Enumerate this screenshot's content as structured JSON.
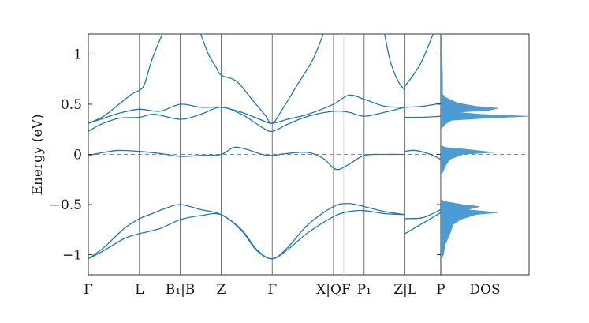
{
  "chart_data": {
    "type": "line",
    "title": "",
    "ylabel": "Energy (eV)",
    "xlabel": "",
    "ylim": [
      -1.2,
      1.2
    ],
    "yticks": [
      {
        "value": 1,
        "label": "1"
      },
      {
        "value": 0.5,
        "label": "0.5"
      },
      {
        "value": 0,
        "label": "0"
      },
      {
        "value": -0.5,
        "label": "−0.5"
      },
      {
        "value": -1,
        "label": "−1"
      }
    ],
    "kpath": [
      {
        "label": "Γ",
        "x": 0
      },
      {
        "label": "L",
        "x": 1
      },
      {
        "label": "B₁|B",
        "x": 1.8
      },
      {
        "label": "Z",
        "x": 2.6
      },
      {
        "label": "Γ",
        "x": 3.6
      },
      {
        "label": "X|QF",
        "x": 4.8
      },
      {
        "label": "P₁",
        "x": 5.4
      },
      {
        "label": "Z|L",
        "x": 6.2
      },
      {
        "label": "P",
        "x": 6.9
      }
    ],
    "xlim": [
      0,
      6.9
    ],
    "fermi_level": 0,
    "colors": {
      "band": "#1f78b4",
      "dos": "#4b9cd3",
      "fermi": "#8a8a8a",
      "axis": "#333333"
    },
    "segments": [
      {
        "x_range": [
          0,
          6.2
        ],
        "bands": [
          {
            "name": "",
            "points": [
              [
                0,
                -1.04
              ],
              [
                0.3,
                -0.93
              ],
              [
                0.7,
                -0.74
              ],
              [
                1.0,
                -0.64
              ],
              [
                1.2,
                -0.6
              ],
              [
                1.5,
                -0.54
              ],
              [
                1.8,
                -0.5
              ],
              [
                2.2,
                -0.55
              ],
              [
                2.6,
                -0.6
              ],
              [
                3.0,
                -0.75
              ],
              [
                3.3,
                -0.95
              ],
              [
                3.6,
                -1.04
              ],
              [
                3.9,
                -0.93
              ],
              [
                4.3,
                -0.7
              ],
              [
                4.8,
                -0.52
              ],
              [
                5.1,
                -0.49
              ],
              [
                5.4,
                -0.52
              ],
              [
                5.8,
                -0.57
              ],
              [
                6.2,
                -0.6
              ]
            ]
          },
          {
            "name": "",
            "points": [
              [
                0,
                -1.04
              ],
              [
                0.3,
                -0.96
              ],
              [
                0.7,
                -0.84
              ],
              [
                1.0,
                -0.79
              ],
              [
                1.4,
                -0.74
              ],
              [
                1.8,
                -0.65
              ],
              [
                2.2,
                -0.61
              ],
              [
                2.6,
                -0.6
              ],
              [
                3.0,
                -0.76
              ],
              [
                3.3,
                -0.96
              ],
              [
                3.6,
                -1.04
              ],
              [
                3.9,
                -0.95
              ],
              [
                4.3,
                -0.78
              ],
              [
                4.8,
                -0.62
              ],
              [
                5.1,
                -0.57
              ],
              [
                5.4,
                -0.56
              ],
              [
                5.8,
                -0.59
              ],
              [
                6.2,
                -0.6
              ]
            ]
          },
          {
            "name": "",
            "points": [
              [
                0,
                -0.01
              ],
              [
                0.3,
                0.02
              ],
              [
                0.6,
                0.04
              ],
              [
                1.0,
                0.03
              ],
              [
                1.4,
                0.01
              ],
              [
                1.8,
                -0.02
              ],
              [
                2.2,
                -0.01
              ],
              [
                2.6,
                0.0
              ],
              [
                2.85,
                0.07
              ],
              [
                3.1,
                0.05
              ],
              [
                3.4,
                0.0
              ],
              [
                3.6,
                -0.01
              ],
              [
                3.9,
                0.01
              ],
              [
                4.3,
                0.02
              ],
              [
                4.6,
                -0.04
              ],
              [
                4.85,
                -0.15
              ],
              [
                5.1,
                -0.1
              ],
              [
                5.4,
                -0.01
              ],
              [
                5.8,
                0.0
              ],
              [
                6.2,
                0.0
              ]
            ]
          },
          {
            "name": "",
            "points": [
              [
                0,
                0.23
              ],
              [
                0.25,
                0.3
              ],
              [
                0.6,
                0.36
              ],
              [
                1.0,
                0.37
              ],
              [
                1.3,
                0.4
              ],
              [
                1.8,
                0.35
              ],
              [
                2.2,
                0.4
              ],
              [
                2.6,
                0.47
              ],
              [
                3.0,
                0.4
              ],
              [
                3.4,
                0.27
              ],
              [
                3.6,
                0.23
              ],
              [
                3.9,
                0.3
              ],
              [
                4.3,
                0.38
              ],
              [
                4.8,
                0.43
              ],
              [
                5.1,
                0.42
              ],
              [
                5.4,
                0.38
              ],
              [
                5.8,
                0.42
              ],
              [
                6.2,
                0.47
              ]
            ]
          },
          {
            "name": "",
            "points": [
              [
                0,
                0.31
              ],
              [
                0.3,
                0.36
              ],
              [
                0.6,
                0.41
              ],
              [
                1.0,
                0.45
              ],
              [
                1.4,
                0.43
              ],
              [
                1.8,
                0.5
              ],
              [
                2.2,
                0.47
              ],
              [
                2.6,
                0.47
              ],
              [
                3.0,
                0.42
              ],
              [
                3.4,
                0.34
              ],
              [
                3.6,
                0.31
              ],
              [
                3.9,
                0.35
              ],
              [
                4.3,
                0.4
              ],
              [
                4.8,
                0.5
              ],
              [
                5.1,
                0.59
              ],
              [
                5.4,
                0.55
              ],
              [
                5.8,
                0.48
              ],
              [
                6.2,
                0.47
              ]
            ]
          },
          {
            "name": "",
            "points": [
              [
                0,
                0.31
              ],
              [
                0.3,
                0.38
              ],
              [
                0.6,
                0.5
              ],
              [
                0.85,
                0.6
              ],
              [
                1.0,
                0.64
              ],
              [
                1.1,
                0.7
              ],
              [
                1.25,
                0.95
              ],
              [
                1.45,
                1.2
              ]
            ]
          },
          {
            "name": "",
            "points": [
              [
                2.2,
                1.2
              ],
              [
                2.35,
                1.0
              ],
              [
                2.5,
                0.87
              ],
              [
                2.6,
                0.79
              ],
              [
                2.9,
                0.73
              ],
              [
                3.2,
                0.55
              ],
              [
                3.45,
                0.4
              ],
              [
                3.6,
                0.31
              ],
              [
                3.8,
                0.45
              ],
              [
                4.1,
                0.7
              ],
              [
                4.4,
                0.95
              ],
              [
                4.6,
                1.2
              ]
            ]
          },
          {
            "name": "",
            "points": [
              [
                5.8,
                1.2
              ],
              [
                5.9,
                0.95
              ],
              [
                6.0,
                0.8
              ],
              [
                6.1,
                0.7
              ],
              [
                6.2,
                0.64
              ]
            ]
          }
        ]
      },
      {
        "x_range": [
          6.2,
          6.9
        ],
        "bands": [
          {
            "name": "",
            "points": [
              [
                6.2,
                -0.79
              ],
              [
                6.5,
                -0.7
              ],
              [
                6.9,
                -0.58
              ]
            ]
          },
          {
            "name": "",
            "points": [
              [
                6.2,
                -0.64
              ],
              [
                6.55,
                -0.63
              ],
              [
                6.9,
                -0.55
              ]
            ]
          },
          {
            "name": "",
            "points": [
              [
                6.2,
                0.03
              ],
              [
                6.4,
                0.04
              ],
              [
                6.7,
                0.0
              ],
              [
                6.9,
                -0.05
              ]
            ]
          },
          {
            "name": "",
            "points": [
              [
                6.2,
                0.37
              ],
              [
                6.55,
                0.37
              ],
              [
                6.9,
                0.38
              ]
            ]
          },
          {
            "name": "",
            "points": [
              [
                6.2,
                0.47
              ],
              [
                6.55,
                0.48
              ],
              [
                6.9,
                0.51
              ]
            ]
          },
          {
            "name": "",
            "points": [
              [
                6.2,
                0.68
              ],
              [
                6.5,
                0.9
              ],
              [
                6.75,
                1.2
              ]
            ]
          }
        ]
      }
    ],
    "dos": {
      "label": "DOS",
      "profile": [
        [
          -1.05,
          0.0
        ],
        [
          -1.0,
          0.03
        ],
        [
          -0.9,
          0.05
        ],
        [
          -0.8,
          0.1
        ],
        [
          -0.7,
          0.14
        ],
        [
          -0.65,
          0.22
        ],
        [
          -0.6,
          0.4
        ],
        [
          -0.58,
          0.65
        ],
        [
          -0.55,
          0.3
        ],
        [
          -0.52,
          0.44
        ],
        [
          -0.5,
          0.25
        ],
        [
          -0.47,
          0.05
        ],
        [
          -0.45,
          0.0
        ],
        [
          -0.2,
          0.0
        ],
        [
          -0.18,
          0.02
        ],
        [
          -0.12,
          0.05
        ],
        [
          -0.05,
          0.1
        ],
        [
          0.0,
          0.25
        ],
        [
          0.02,
          0.6
        ],
        [
          0.05,
          0.3
        ],
        [
          0.07,
          0.05
        ],
        [
          0.09,
          0.0
        ],
        [
          0.25,
          0.0
        ],
        [
          0.3,
          0.05
        ],
        [
          0.34,
          0.12
        ],
        [
          0.36,
          0.5
        ],
        [
          0.38,
          1.0
        ],
        [
          0.4,
          0.45
        ],
        [
          0.42,
          0.2
        ],
        [
          0.44,
          0.55
        ],
        [
          0.46,
          0.65
        ],
        [
          0.48,
          0.4
        ],
        [
          0.51,
          0.2
        ],
        [
          0.54,
          0.12
        ],
        [
          0.57,
          0.05
        ],
        [
          0.6,
          0.02
        ],
        [
          0.8,
          0.02
        ],
        [
          1.0,
          0.01
        ],
        [
          1.2,
          0.01
        ]
      ]
    }
  }
}
